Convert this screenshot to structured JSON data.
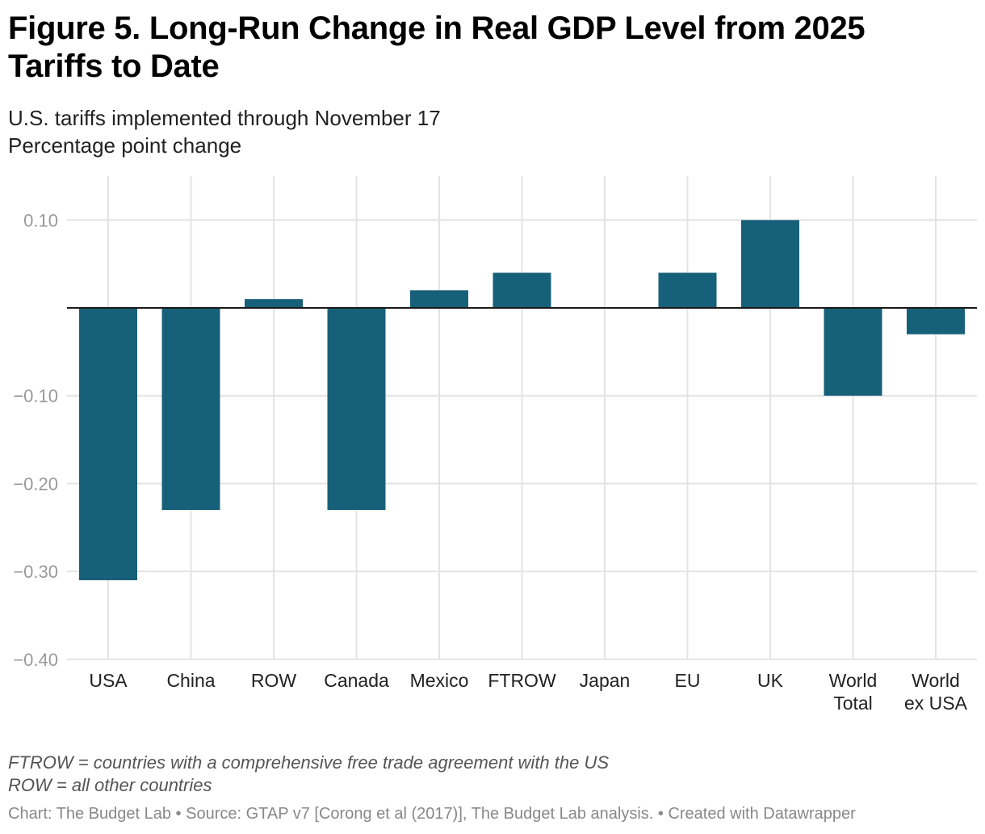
{
  "title": "Figure 5. Long-Run Change in Real GDP Level from 2025 Tariffs to Date",
  "subtitle": "U.S. tariffs implemented through November 17",
  "unit_label": "Percentage point change",
  "notes": [
    "FTROW = countries with a comprehensive free trade agreement with the US",
    "ROW = all other countries"
  ],
  "source": "Chart: The Budget Lab • Source: GTAP v7 [Corong et al (2017)], The Budget Lab analysis. • Created with Datawrapper",
  "chart_data": {
    "type": "bar",
    "categories": [
      [
        "USA"
      ],
      [
        "China"
      ],
      [
        "ROW"
      ],
      [
        "Canada"
      ],
      [
        "Mexico"
      ],
      [
        "FTROW"
      ],
      [
        "Japan"
      ],
      [
        "EU"
      ],
      [
        "UK"
      ],
      [
        "World",
        "Total"
      ],
      [
        "World",
        "ex USA"
      ]
    ],
    "values": [
      -0.31,
      -0.23,
      0.01,
      -0.23,
      0.02,
      0.04,
      0.0,
      0.04,
      0.1,
      -0.1,
      -0.03
    ],
    "ylim": [
      -0.4,
      0.15
    ],
    "yticks": [
      0.1,
      0,
      -0.1,
      -0.2,
      -0.3,
      -0.4
    ],
    "ytick_labels": [
      "0.10",
      "",
      "−0.10",
      "−0.20",
      "−0.30",
      "−0.40"
    ],
    "grid": true,
    "bar_color": "#17607a"
  }
}
